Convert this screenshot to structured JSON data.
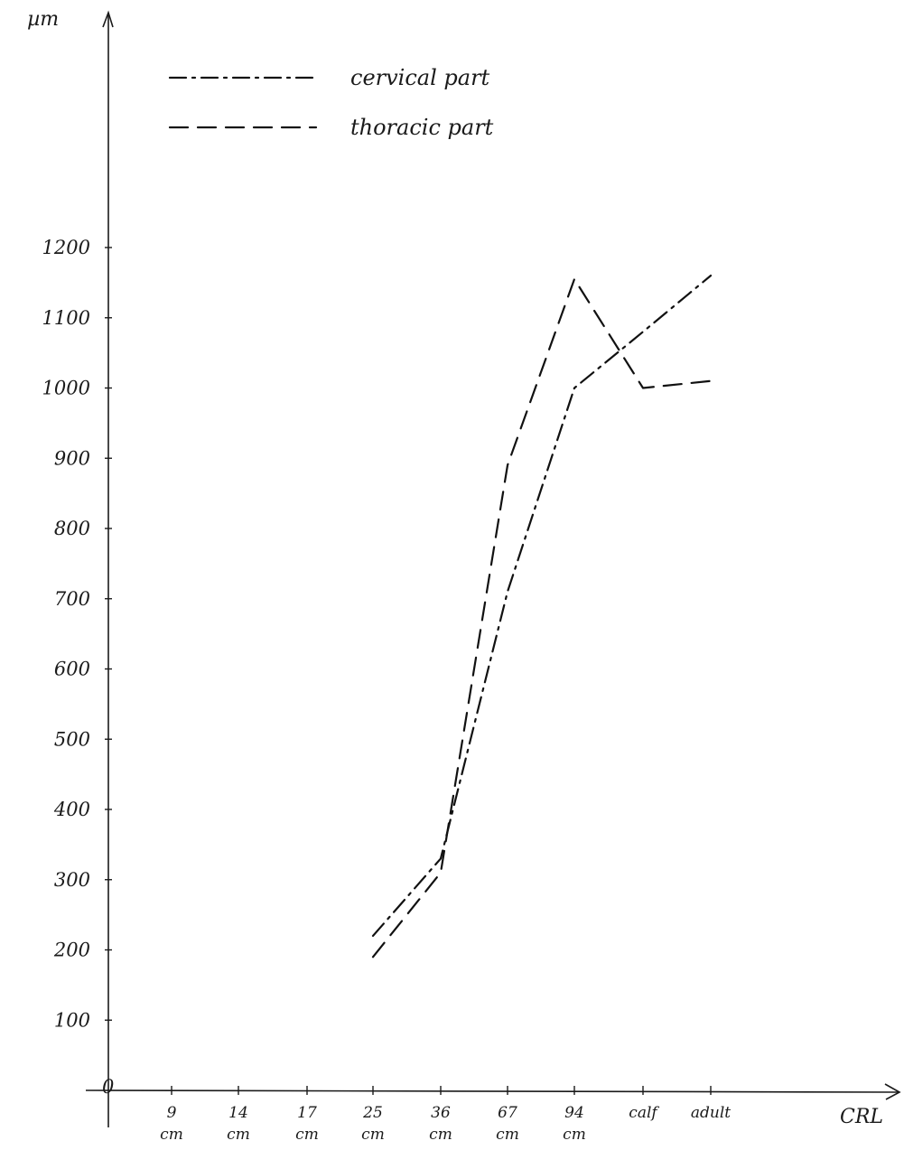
{
  "chart_data": {
    "type": "line",
    "title": "",
    "ylabel": "µm",
    "xlabel": "CRL",
    "ylim": [
      0,
      1200
    ],
    "yticks": [
      100,
      200,
      300,
      400,
      500,
      600,
      700,
      800,
      900,
      1000,
      1100,
      1200
    ],
    "yticklabels": [
      "100",
      "200",
      "300",
      "400",
      "500",
      "600",
      "700",
      "800",
      "900",
      "1000",
      "1100",
      "1200"
    ],
    "origin_label": "0",
    "categories": [
      "9",
      "14",
      "17",
      "25",
      "36",
      "67",
      "94",
      "calf",
      "adult"
    ],
    "category_units": [
      "cm",
      "cm",
      "cm",
      "cm",
      "cm",
      "cm",
      "cm",
      "",
      ""
    ],
    "grid": false,
    "legend_position": "top-left",
    "series": [
      {
        "name": "cervical part",
        "line_style": "dash-dot",
        "color": "#111111",
        "values": [
          null,
          null,
          null,
          220,
          330,
          710,
          1000,
          1080,
          1160
        ]
      },
      {
        "name": "thoracic part",
        "line_style": "dashed",
        "color": "#111111",
        "values": [
          null,
          null,
          null,
          190,
          310,
          890,
          1155,
          1000,
          1010
        ]
      }
    ]
  }
}
